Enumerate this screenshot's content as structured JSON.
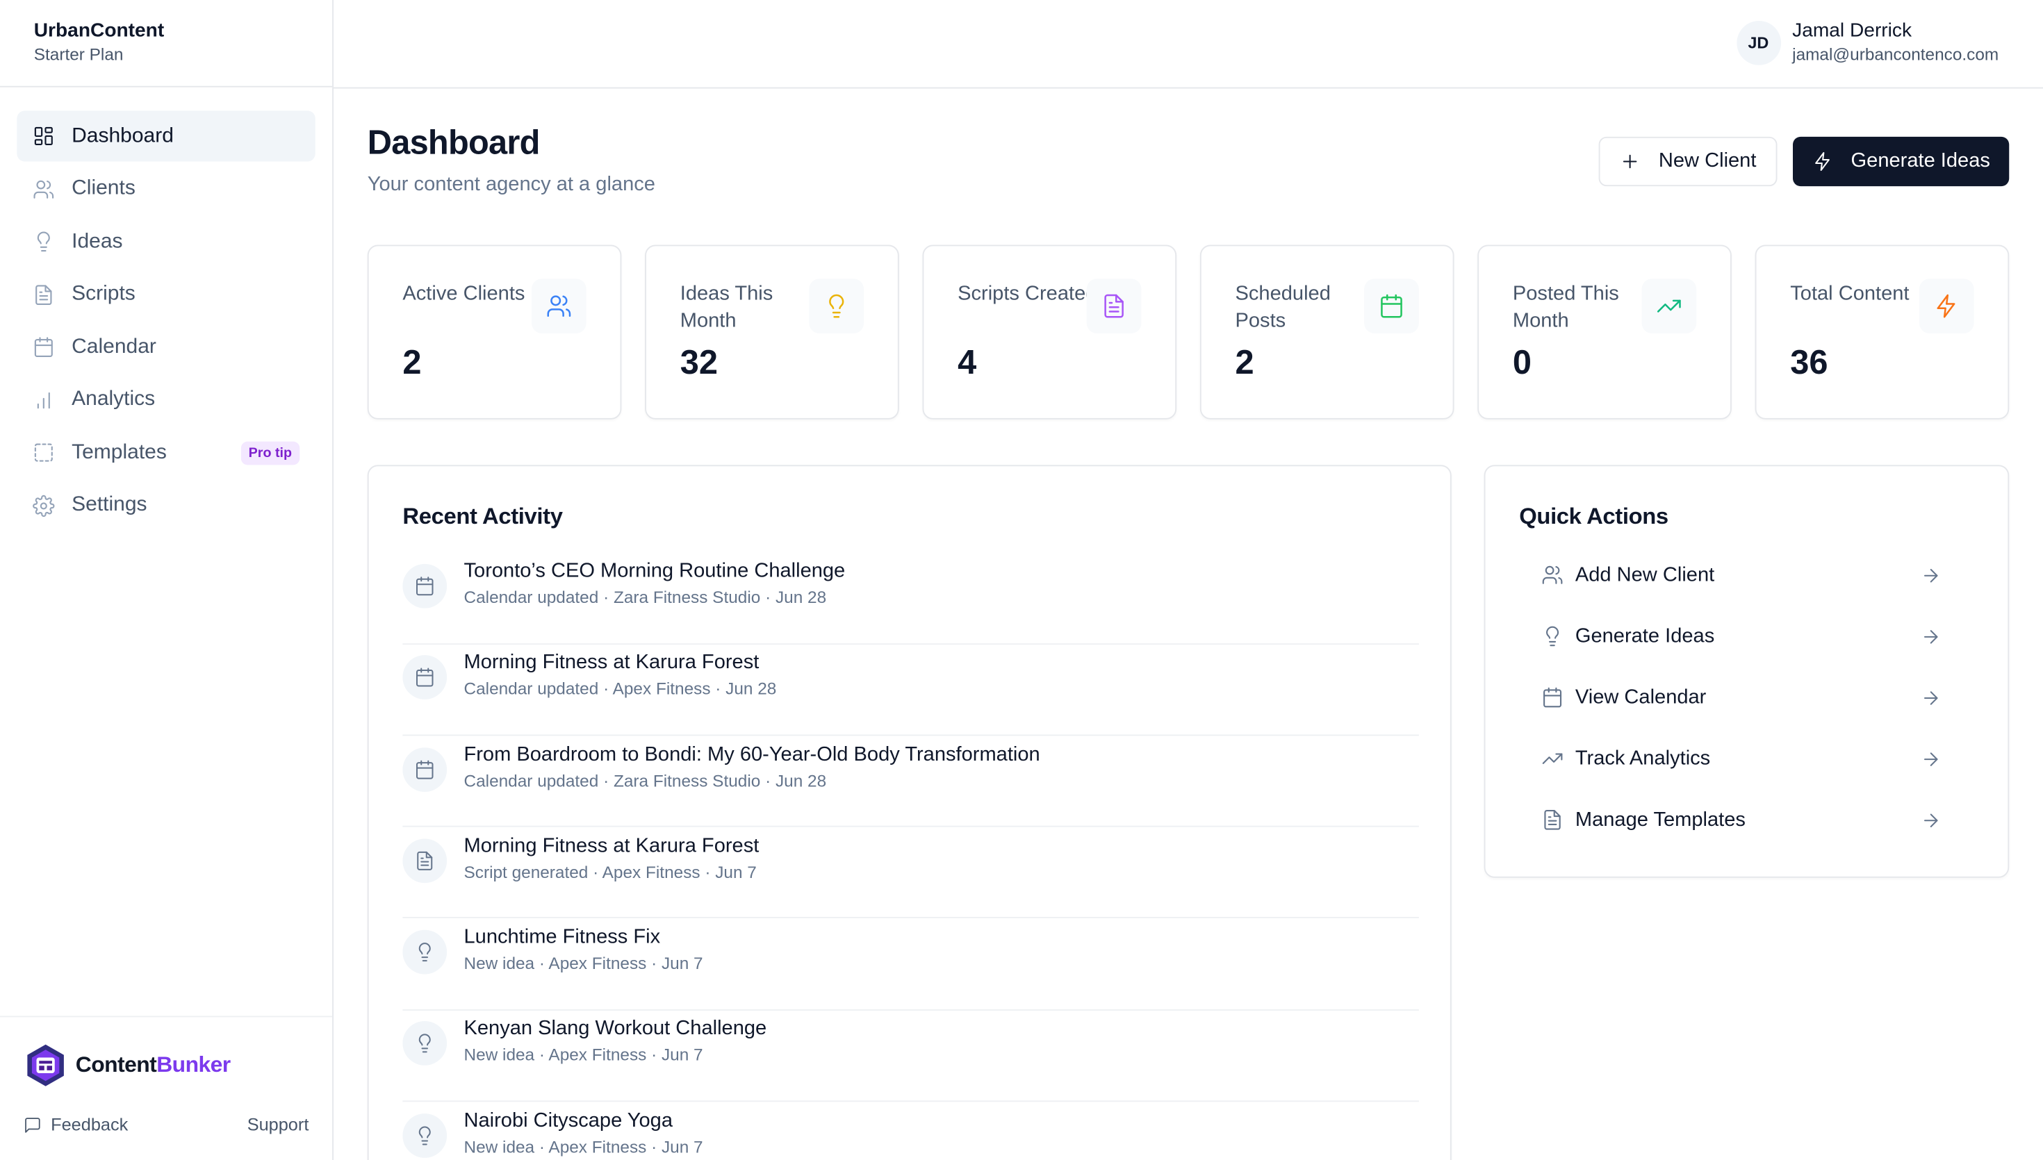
{
  "sidebar": {
    "brand": {
      "name": "UrbanContent",
      "plan": "Starter Plan"
    },
    "items": [
      {
        "label": "Dashboard",
        "icon": "dashboard-icon",
        "active": true
      },
      {
        "label": "Clients",
        "icon": "users-icon"
      },
      {
        "label": "Ideas",
        "icon": "lightbulb-icon"
      },
      {
        "label": "Scripts",
        "icon": "document-icon"
      },
      {
        "label": "Calendar",
        "icon": "calendar-icon"
      },
      {
        "label": "Analytics",
        "icon": "bar-chart-icon"
      },
      {
        "label": "Templates",
        "icon": "template-icon",
        "badge": "Pro tip"
      },
      {
        "label": "Settings",
        "icon": "gear-icon"
      }
    ],
    "footer": {
      "logo_text_a": "Content",
      "logo_text_b": "Bunker",
      "feedback": "Feedback",
      "support": "Support"
    }
  },
  "header": {
    "user": {
      "initials": "JD",
      "name": "Jamal Derrick",
      "email": "jamal@urbancontenco.com"
    }
  },
  "main": {
    "title": "Dashboard",
    "subtitle": "Your content agency at a glance",
    "buttons": {
      "new_client": "New Client",
      "generate_ideas": "Generate Ideas"
    },
    "stats": [
      {
        "label": "Active Clients",
        "value": "2",
        "icon": "users-icon",
        "color": "#3b82f6"
      },
      {
        "label": "Ideas This Month",
        "value": "32",
        "icon": "lightbulb-icon",
        "color": "#eab308"
      },
      {
        "label": "Scripts Created",
        "value": "4",
        "icon": "document-icon",
        "color": "#a855f7"
      },
      {
        "label": "Scheduled Posts",
        "value": "2",
        "icon": "calendar-icon",
        "color": "#22c55e"
      },
      {
        "label": "Posted This Month",
        "value": "0",
        "icon": "trending-up-icon",
        "color": "#10b981"
      },
      {
        "label": "Total Content",
        "value": "36",
        "icon": "lightning-icon",
        "color": "#f97316"
      }
    ],
    "recent_activity": {
      "title": "Recent Activity",
      "items": [
        {
          "title": "Toronto’s CEO Morning Routine Challenge",
          "meta": "Calendar updated · Zara Fitness Studio · Jun 28",
          "icon": "calendar-icon"
        },
        {
          "title": "Morning Fitness at Karura Forest",
          "meta": "Calendar updated · Apex Fitness · Jun 28",
          "icon": "calendar-icon"
        },
        {
          "title": "From Boardroom to Bondi: My 60-Year-Old Body Transformation",
          "meta": "Calendar updated · Zara Fitness Studio · Jun 28",
          "icon": "calendar-icon"
        },
        {
          "title": "Morning Fitness at Karura Forest",
          "meta": "Script generated · Apex Fitness · Jun 7",
          "icon": "document-icon"
        },
        {
          "title": "Lunchtime Fitness Fix",
          "meta": "New idea · Apex Fitness · Jun 7",
          "icon": "lightbulb-icon"
        },
        {
          "title": "Kenyan Slang Workout Challenge",
          "meta": "New idea · Apex Fitness · Jun 7",
          "icon": "lightbulb-icon"
        },
        {
          "title": "Nairobi Cityscape Yoga",
          "meta": "New idea · Apex Fitness · Jun 7",
          "icon": "lightbulb-icon"
        }
      ]
    },
    "quick_actions": {
      "title": "Quick Actions",
      "items": [
        {
          "label": "Add New Client",
          "icon": "users-icon"
        },
        {
          "label": "Generate Ideas",
          "icon": "lightbulb-icon"
        },
        {
          "label": "View Calendar",
          "icon": "calendar-icon"
        },
        {
          "label": "Track Analytics",
          "icon": "trending-up-icon"
        },
        {
          "label": "Manage Templates",
          "icon": "document-icon"
        }
      ]
    }
  },
  "colors": {
    "primary_dark": "#0f172a",
    "brand_purple": "#7c3aed",
    "border": "#e5e7eb"
  }
}
